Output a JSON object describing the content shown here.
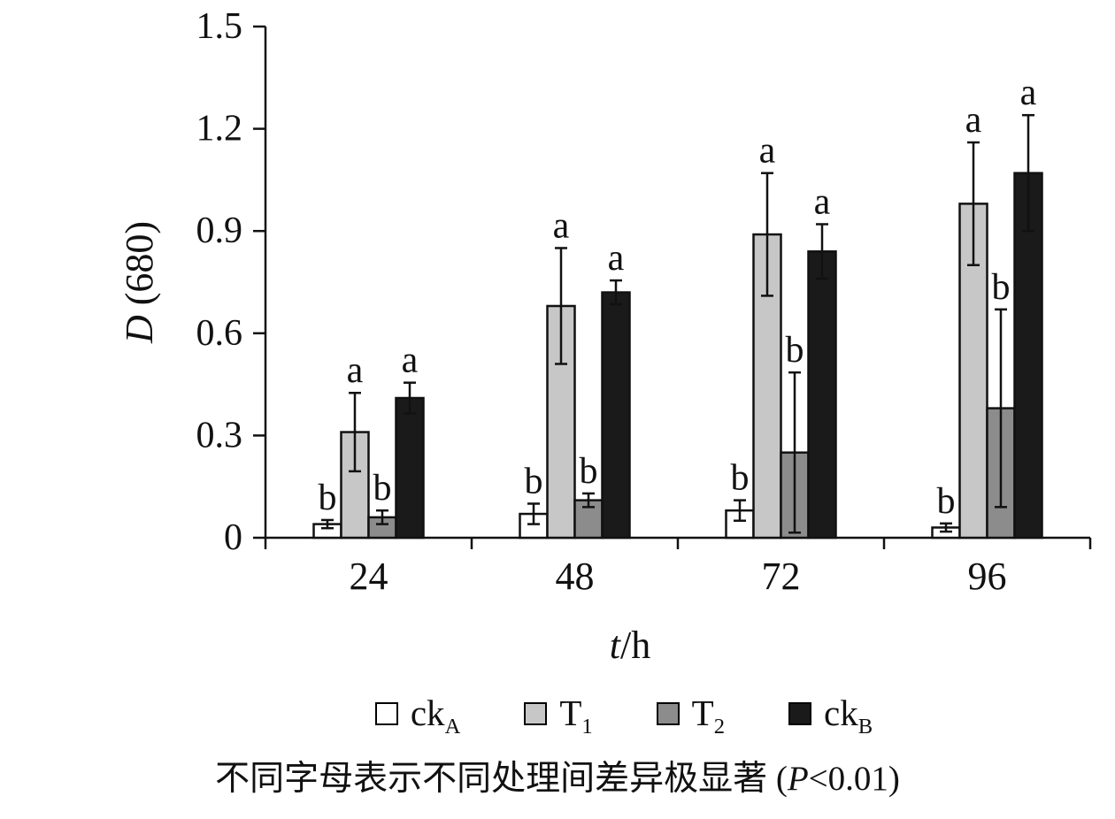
{
  "chart_data": {
    "type": "bar",
    "title": "",
    "xlabel_italic": "t",
    "xlabel_rest": "/h",
    "ylabel_italic": "D",
    "ylabel_rest": " (680)",
    "categories": [
      "24",
      "48",
      "72",
      "96"
    ],
    "ylim": [
      0,
      1.5
    ],
    "yticks": [
      0,
      0.3,
      0.6,
      0.9,
      1.2,
      1.5
    ],
    "ytick_labels": [
      "0",
      "0.3",
      "0.6",
      "0.9",
      "1.2",
      "1.5"
    ],
    "grid": false,
    "legend_position": "bottom",
    "axis_color": "#111111",
    "series": [
      {
        "name": "ck",
        "sub": "A",
        "color": "#ffffff",
        "values": [
          0.04,
          0.07,
          0.08,
          0.03
        ],
        "errors": [
          0.012,
          0.03,
          0.03,
          0.012
        ],
        "letters": [
          "b",
          "b",
          "b",
          "b"
        ]
      },
      {
        "name": "T",
        "sub": "1",
        "color": "#c7c7c7",
        "values": [
          0.31,
          0.68,
          0.89,
          0.98
        ],
        "errors": [
          0.115,
          0.17,
          0.18,
          0.18
        ],
        "letters": [
          "a",
          "a",
          "a",
          "a"
        ]
      },
      {
        "name": "T",
        "sub": "2",
        "color": "#8c8c8c",
        "values": [
          0.06,
          0.11,
          0.25,
          0.38
        ],
        "errors": [
          0.02,
          0.02,
          0.235,
          0.29
        ],
        "letters": [
          "b",
          "b",
          "b",
          "b"
        ]
      },
      {
        "name": "ck",
        "sub": "B",
        "color": "#1a1a1a",
        "values": [
          0.41,
          0.72,
          0.84,
          1.07
        ],
        "errors": [
          0.045,
          0.035,
          0.08,
          0.17
        ],
        "letters": [
          "a",
          "a",
          "a",
          "a"
        ]
      }
    ]
  },
  "caption": {
    "prefix": "不同字母表示不同处理间差异极显著 (",
    "p_italic": "P",
    "suffix": "<0.01)"
  }
}
